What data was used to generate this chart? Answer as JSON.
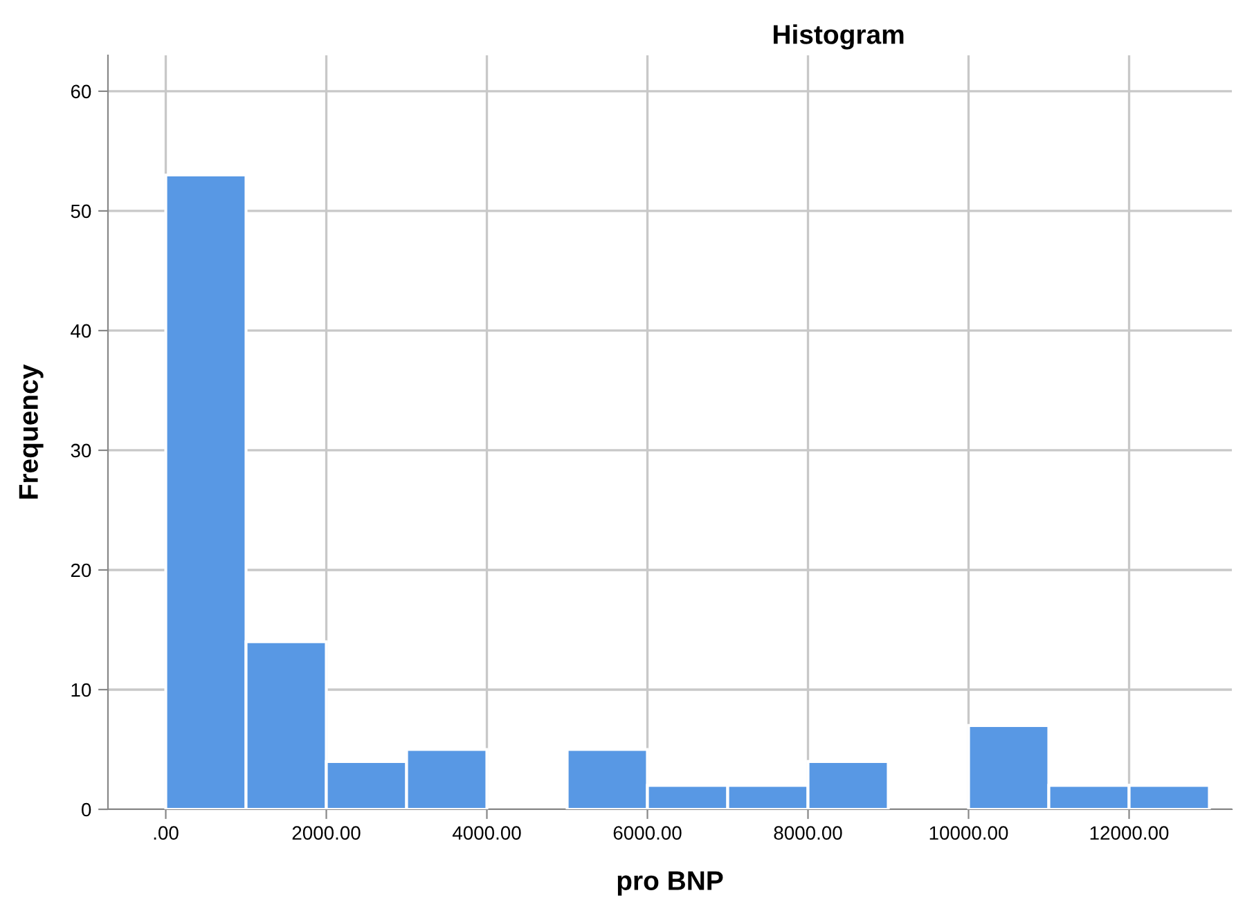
{
  "chart_data": {
    "type": "histogram",
    "title": "Histogram",
    "xlabel": "pro BNP",
    "ylabel": "Frequency",
    "bins": [
      0,
      1000,
      2000,
      3000,
      4000,
      5000,
      6000,
      7000,
      8000,
      9000,
      10000,
      11000,
      12000,
      13000
    ],
    "values": [
      53,
      14,
      4,
      5,
      0,
      5,
      2,
      2,
      4,
      0,
      7,
      2,
      2
    ],
    "color": "#5898e4",
    "xlim": [
      -720,
      13280
    ],
    "ylim": [
      0,
      63
    ],
    "xticks": [
      {
        "value": 0,
        "label": ".00"
      },
      {
        "value": 2000,
        "label": "2000.00"
      },
      {
        "value": 4000,
        "label": "4000.00"
      },
      {
        "value": 6000,
        "label": "6000.00"
      },
      {
        "value": 8000,
        "label": "8000.00"
      },
      {
        "value": 10000,
        "label": "10000.00"
      },
      {
        "value": 12000,
        "label": "12000.00"
      }
    ],
    "yticks": [
      0,
      10,
      20,
      30,
      40,
      50,
      60
    ],
    "grid": true
  }
}
